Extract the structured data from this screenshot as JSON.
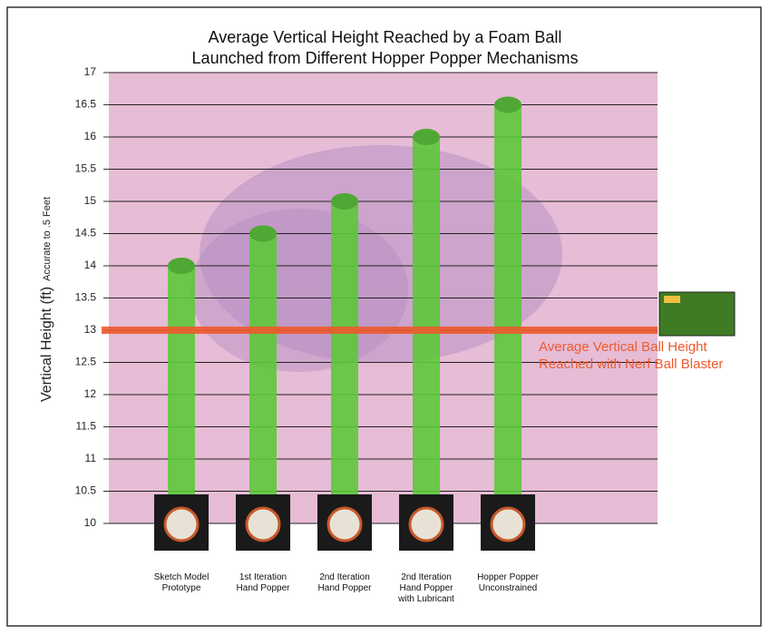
{
  "chart_data": {
    "type": "bar",
    "title": "Average Vertical Height Reached by a Foam Ball\nLaunched from Different Hopper Popper Mechanisms",
    "ylabel": "Vertical Height (ft)",
    "ylabel_note": "Accurate to .5 Feet",
    "categories": [
      "Sketch Model\nPrototype",
      "1st Iteration\nHand Popper",
      "2nd Iteration\nHand Popper",
      "2nd Iteration\nHand Popper\nwith Lubricant",
      "Hopper Popper\nUnconstrained"
    ],
    "values": [
      14,
      14.5,
      15,
      16,
      16.5
    ],
    "color": "#5cc83a",
    "ylim": [
      10,
      17
    ],
    "yticks": [
      10,
      10.5,
      11,
      11.5,
      12,
      12.5,
      13,
      13.5,
      14,
      14.5,
      15,
      15.5,
      16,
      16.5,
      17
    ],
    "grid": true,
    "reference_line": {
      "value": 13,
      "label": "Average Vertical Ball Height\nReached with Nerf Ball Blaster",
      "color": "#ee5a2c"
    }
  }
}
